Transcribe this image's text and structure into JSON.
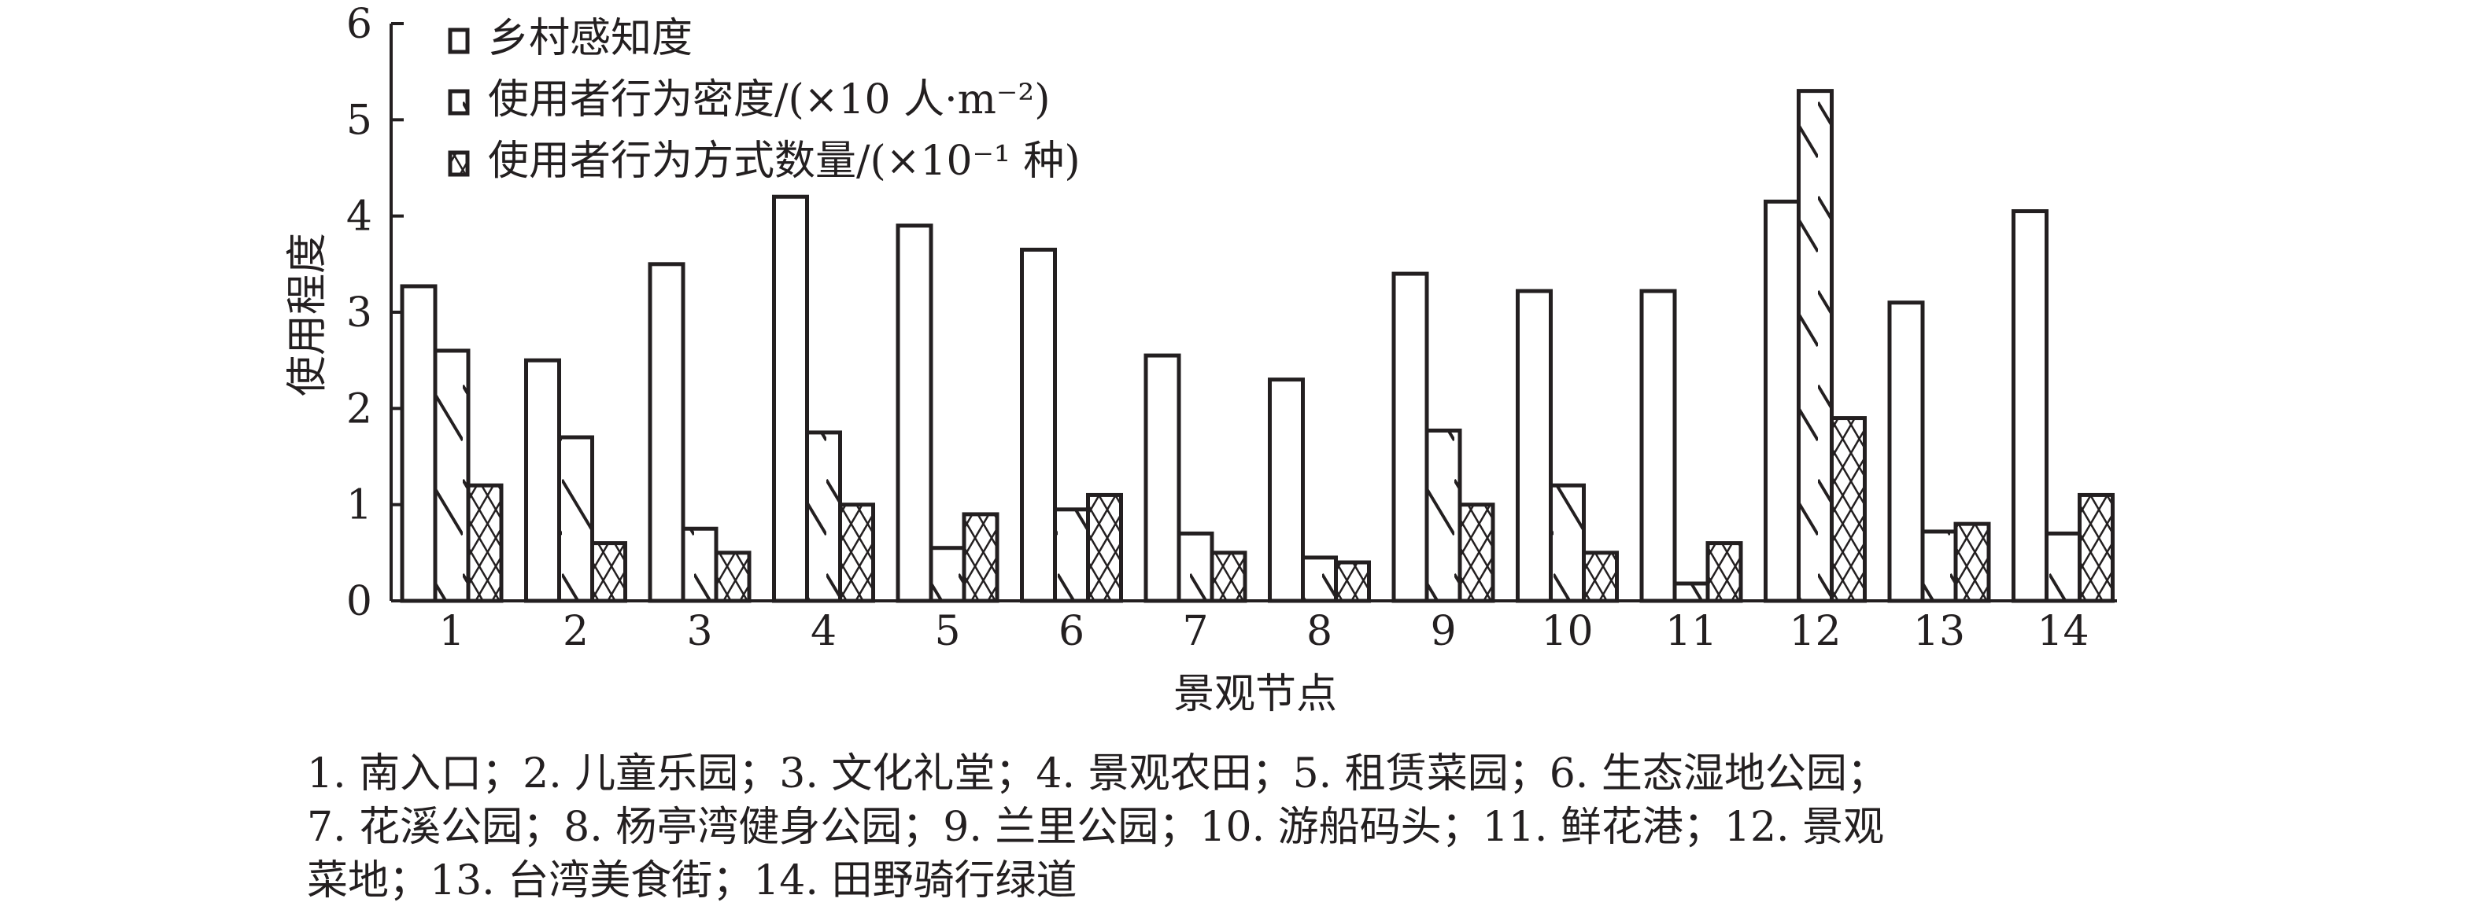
{
  "chart_data": {
    "type": "bar",
    "xlabel": "景观节点",
    "ylabel": "使用程度",
    "ylim": [
      0,
      6
    ],
    "yticks": [
      "0",
      "1",
      "2",
      "3",
      "4",
      "5",
      "6"
    ],
    "categories": [
      "1",
      "2",
      "3",
      "4",
      "5",
      "6",
      "7",
      "8",
      "9",
      "10",
      "11",
      "12",
      "13",
      "14"
    ],
    "legend_position": "top-left",
    "grid": false,
    "series": [
      {
        "name": "乡村感知度",
        "pattern": "empty",
        "values": [
          3.27,
          2.5,
          3.5,
          4.2,
          3.9,
          3.65,
          2.55,
          2.3,
          3.4,
          3.22,
          3.22,
          4.15,
          3.1,
          4.05
        ]
      },
      {
        "name": "使用者行为密度/(×10 人·m⁻²)",
        "pattern": "diagonal",
        "values": [
          2.6,
          1.7,
          0.75,
          1.75,
          0.55,
          0.95,
          0.7,
          0.45,
          1.77,
          1.2,
          0.18,
          5.3,
          0.72,
          0.7
        ]
      },
      {
        "name": "使用者行为方式数量/(×10⁻¹ 种)",
        "pattern": "crosshatch",
        "values": [
          1.2,
          0.6,
          0.5,
          1.0,
          0.9,
          1.1,
          0.5,
          0.4,
          1.0,
          0.5,
          0.6,
          1.9,
          0.8,
          1.1
        ]
      }
    ]
  },
  "caption": {
    "lines": [
      "1. 南入口；2. 儿童乐园；3. 文化礼堂；4. 景观农田；5. 租赁菜园；6. 生态湿地公园；",
      "7. 花溪公园；8. 杨亭湾健身公园；9. 兰里公园；10. 游船码头；11. 鲜花港；12. 景观",
      "菜地；13. 台湾美食街；14. 田野骑行绿道"
    ]
  },
  "colors": {
    "ink": "#231f20",
    "fill": "#ffffff"
  }
}
